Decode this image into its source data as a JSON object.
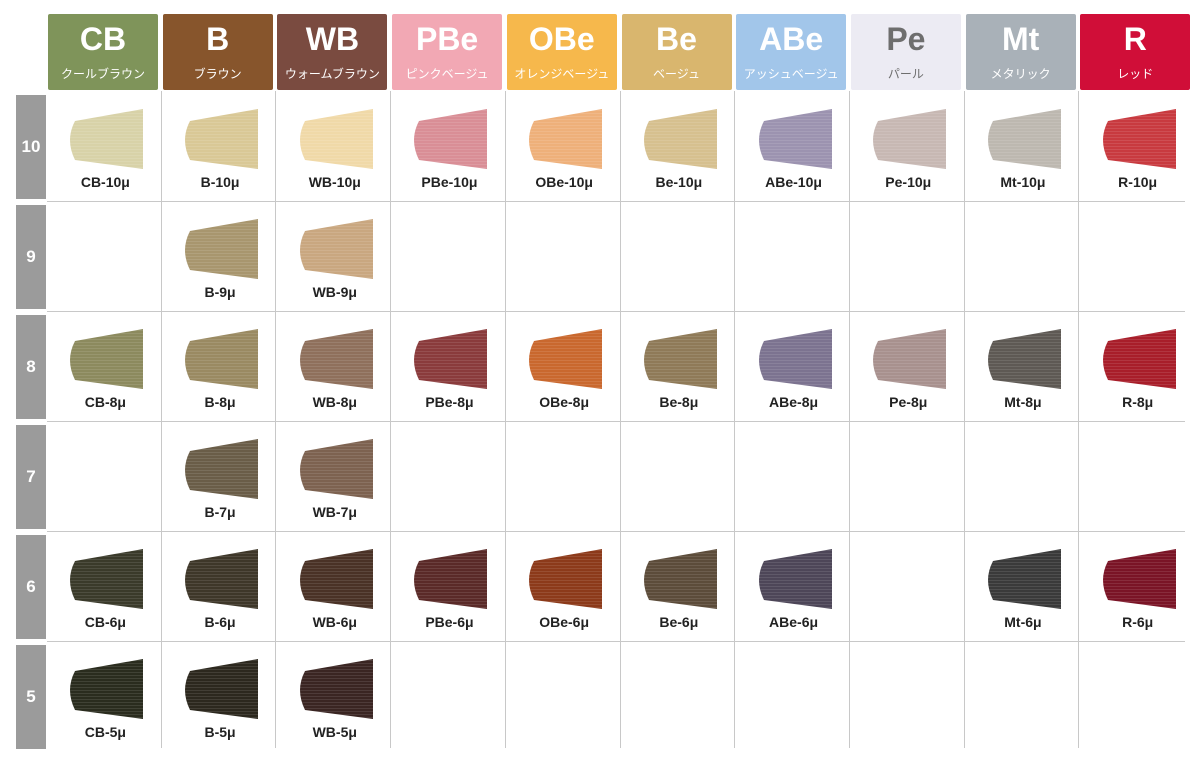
{
  "columns": [
    {
      "code": "CB",
      "name": "クールブラウン",
      "color": "#7f945a",
      "text_color": "#ffffff"
    },
    {
      "code": "B",
      "name": "ブラウン",
      "color": "#87552c",
      "text_color": "#ffffff"
    },
    {
      "code": "WB",
      "name": "ウォームブラウン",
      "color": "#7a4b40",
      "text_color": "#ffffff"
    },
    {
      "code": "PBe",
      "name": "ピンクベージュ",
      "color": "#f2a8b4",
      "text_color": "#ffffff"
    },
    {
      "code": "OBe",
      "name": "オレンジベージュ",
      "color": "#f6b84c",
      "text_color": "#ffffff"
    },
    {
      "code": "Be",
      "name": "ベージュ",
      "color": "#d9b66e",
      "text_color": "#ffffff"
    },
    {
      "code": "ABe",
      "name": "アッシュベージュ",
      "color": "#a2c6ea",
      "text_color": "#ffffff"
    },
    {
      "code": "Pe",
      "name": "パール",
      "color": "#ecebf3",
      "text_color": "#6e6e6e"
    },
    {
      "code": "Mt",
      "name": "メタリック",
      "color": "#a9b1b8",
      "text_color": "#ffffff"
    },
    {
      "code": "R",
      "name": "レッド",
      "color": "#d00e38",
      "text_color": "#ffffff"
    }
  ],
  "rows": [
    {
      "level": "10",
      "swatches": [
        {
          "label": "CB-10μ",
          "color": "#d8d2a8"
        },
        {
          "label": "B-10μ",
          "color": "#d9c896"
        },
        {
          "label": "WB-10μ",
          "color": "#f0d9a8"
        },
        {
          "label": "PBe-10μ",
          "color": "#d98e96"
        },
        {
          "label": "OBe-10μ",
          "color": "#eeb07a"
        },
        {
          "label": "Be-10μ",
          "color": "#d6c08f"
        },
        {
          "label": "ABe-10μ",
          "color": "#9c93b0"
        },
        {
          "label": "Pe-10μ",
          "color": "#c7b8b3"
        },
        {
          "label": "Mt-10μ",
          "color": "#bdb8b0"
        },
        {
          "label": "R-10μ",
          "color": "#c83a3f"
        }
      ]
    },
    {
      "level": "9",
      "swatches": [
        null,
        {
          "label": "B-9μ",
          "color": "#a8966e"
        },
        {
          "label": "WB-9μ",
          "color": "#c9a780"
        },
        null,
        null,
        null,
        null,
        null,
        null,
        null
      ]
    },
    {
      "level": "8",
      "swatches": [
        {
          "label": "CB-8μ",
          "color": "#8c8a5e"
        },
        {
          "label": "B-8μ",
          "color": "#9a8a62"
        },
        {
          "label": "WB-8μ",
          "color": "#8f705c"
        },
        {
          "label": "PBe-8μ",
          "color": "#8a3b3c"
        },
        {
          "label": "OBe-8μ",
          "color": "#c9682e"
        },
        {
          "label": "Be-8μ",
          "color": "#8f7a58"
        },
        {
          "label": "ABe-8μ",
          "color": "#7c7390"
        },
        {
          "label": "Pe-8μ",
          "color": "#a8918e"
        },
        {
          "label": "Mt-8μ",
          "color": "#5e5954"
        },
        {
          "label": "R-8μ",
          "color": "#a81e2a"
        }
      ]
    },
    {
      "level": "7",
      "swatches": [
        null,
        {
          "label": "B-7μ",
          "color": "#6a5d48"
        },
        {
          "label": "WB-7μ",
          "color": "#7d6250"
        },
        null,
        null,
        null,
        null,
        null,
        null,
        null
      ]
    },
    {
      "level": "6",
      "swatches": [
        {
          "label": "CB-6μ",
          "color": "#3a3a2a"
        },
        {
          "label": "B-6μ",
          "color": "#3e3729"
        },
        {
          "label": "WB-6μ",
          "color": "#4a3226"
        },
        {
          "label": "PBe-6μ",
          "color": "#5a2a28"
        },
        {
          "label": "OBe-6μ",
          "color": "#8c3a1a"
        },
        {
          "label": "Be-6μ",
          "color": "#5c4c3a"
        },
        {
          "label": "ABe-6μ",
          "color": "#4d4658"
        },
        null,
        {
          "label": "Mt-6μ",
          "color": "#3a3a3a"
        },
        {
          "label": "R-6μ",
          "color": "#7a1426"
        }
      ]
    },
    {
      "level": "5",
      "swatches": [
        {
          "label": "CB-5μ",
          "color": "#2a2c1e"
        },
        {
          "label": "B-5μ",
          "color": "#2c281e"
        },
        {
          "label": "WB-5μ",
          "color": "#3a2522"
        },
        null,
        null,
        null,
        null,
        null,
        null,
        null
      ]
    }
  ]
}
